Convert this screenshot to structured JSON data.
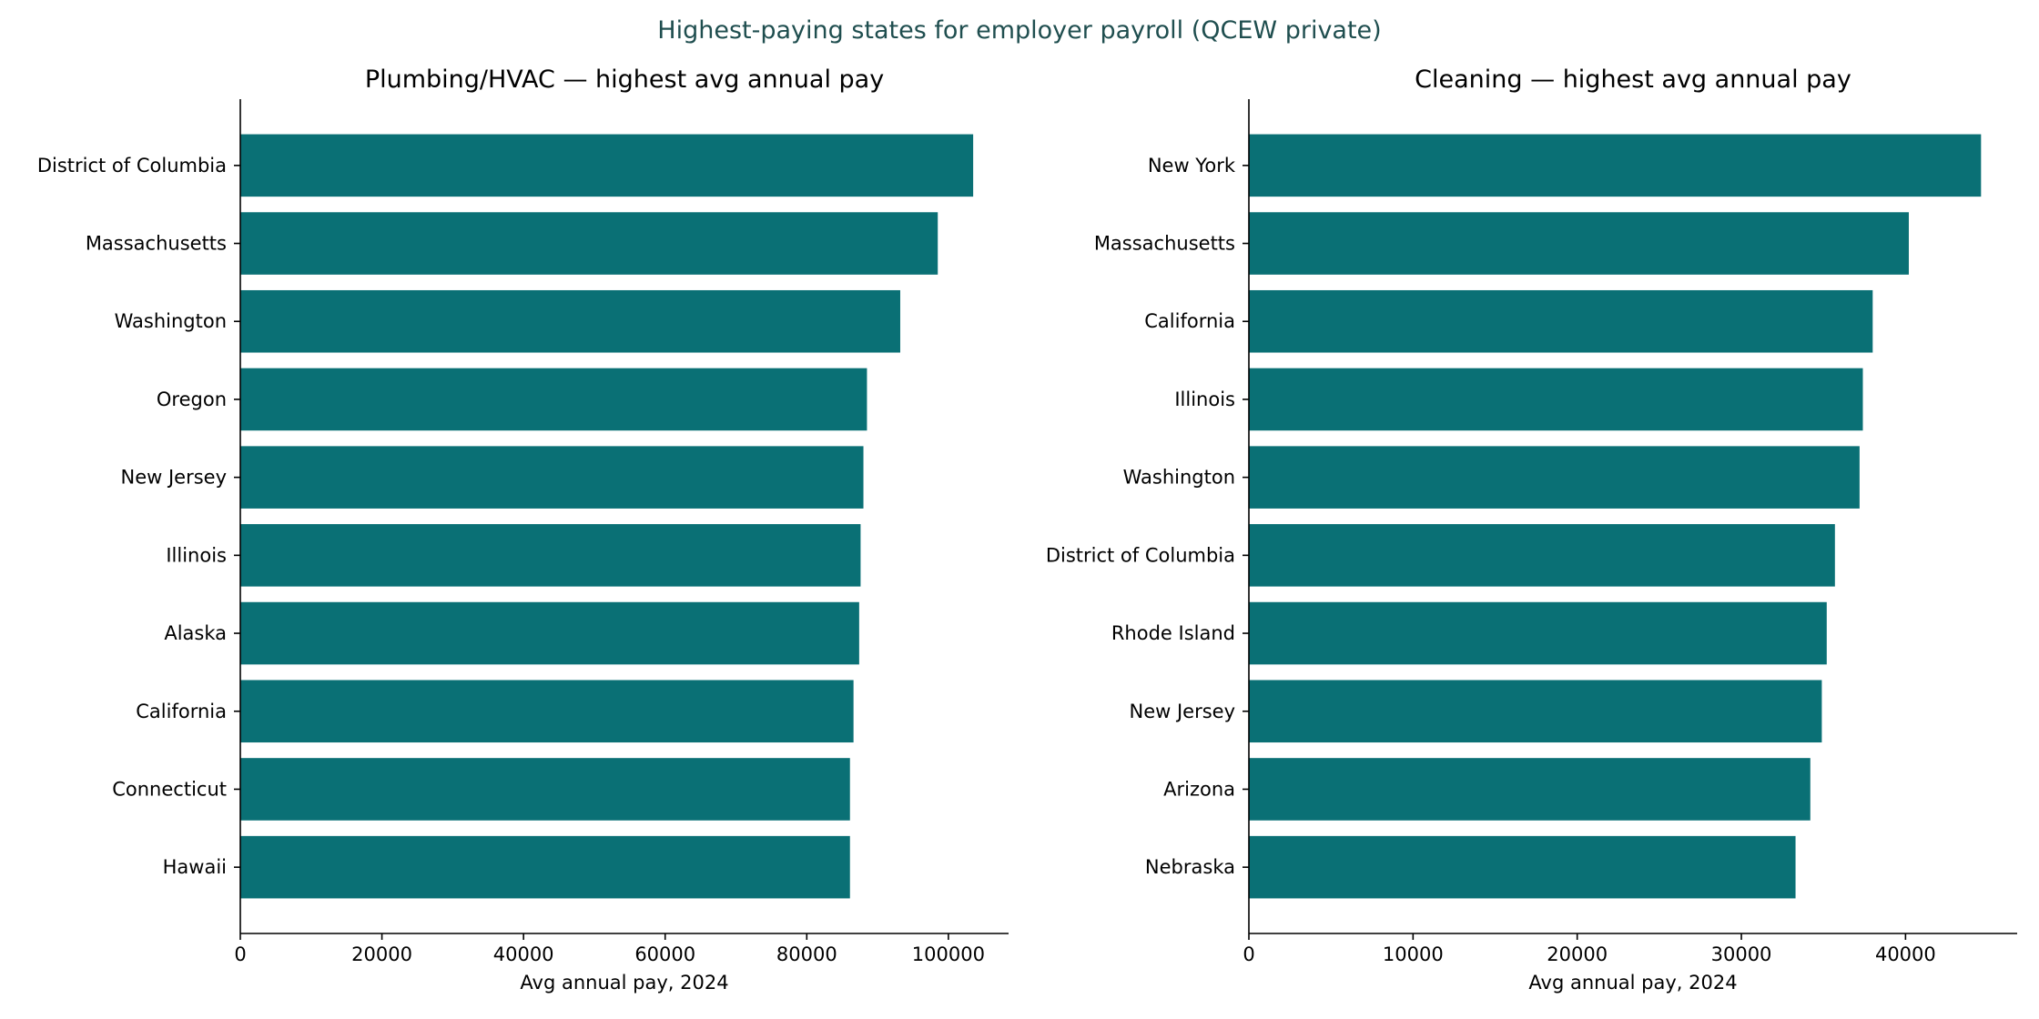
{
  "figure_title": "Highest-paying states for employer payroll (QCEW private)",
  "bar_color": "#0a7075",
  "chart_data": [
    {
      "type": "bar",
      "orientation": "horizontal",
      "title": "Plumbing/HVAC — highest avg annual pay",
      "xlabel": "Avg annual pay, 2024",
      "ylabel": "",
      "categories": [
        "District of Columbia",
        "Massachusetts",
        "Washington",
        "Oregon",
        "New Jersey",
        "Illinois",
        "Alaska",
        "California",
        "Connecticut",
        "Hawaii"
      ],
      "values": [
        103500,
        98500,
        93200,
        88500,
        88000,
        87600,
        87400,
        86600,
        86100,
        86100
      ],
      "xlim": [
        0,
        108500
      ],
      "xticks": [
        0,
        20000,
        40000,
        60000,
        80000,
        100000
      ],
      "xtick_labels": [
        "0",
        "20000",
        "40000",
        "60000",
        "80000",
        "100000"
      ],
      "grid": false,
      "legend": "none"
    },
    {
      "type": "bar",
      "orientation": "horizontal",
      "title": "Cleaning — highest avg annual pay",
      "xlabel": "Avg annual pay, 2024",
      "ylabel": "",
      "categories": [
        "New York",
        "Massachusetts",
        "California",
        "Illinois",
        "Washington",
        "District of Columbia",
        "Rhode Island",
        "New Jersey",
        "Arizona",
        "Nebraska"
      ],
      "values": [
        44600,
        40200,
        38000,
        37400,
        37200,
        35700,
        35200,
        34900,
        34200,
        33300
      ],
      "xlim": [
        0,
        46800
      ],
      "xticks": [
        0,
        10000,
        20000,
        30000,
        40000
      ],
      "xtick_labels": [
        "0",
        "10000",
        "20000",
        "30000",
        "40000"
      ],
      "grid": false,
      "legend": "none"
    }
  ]
}
